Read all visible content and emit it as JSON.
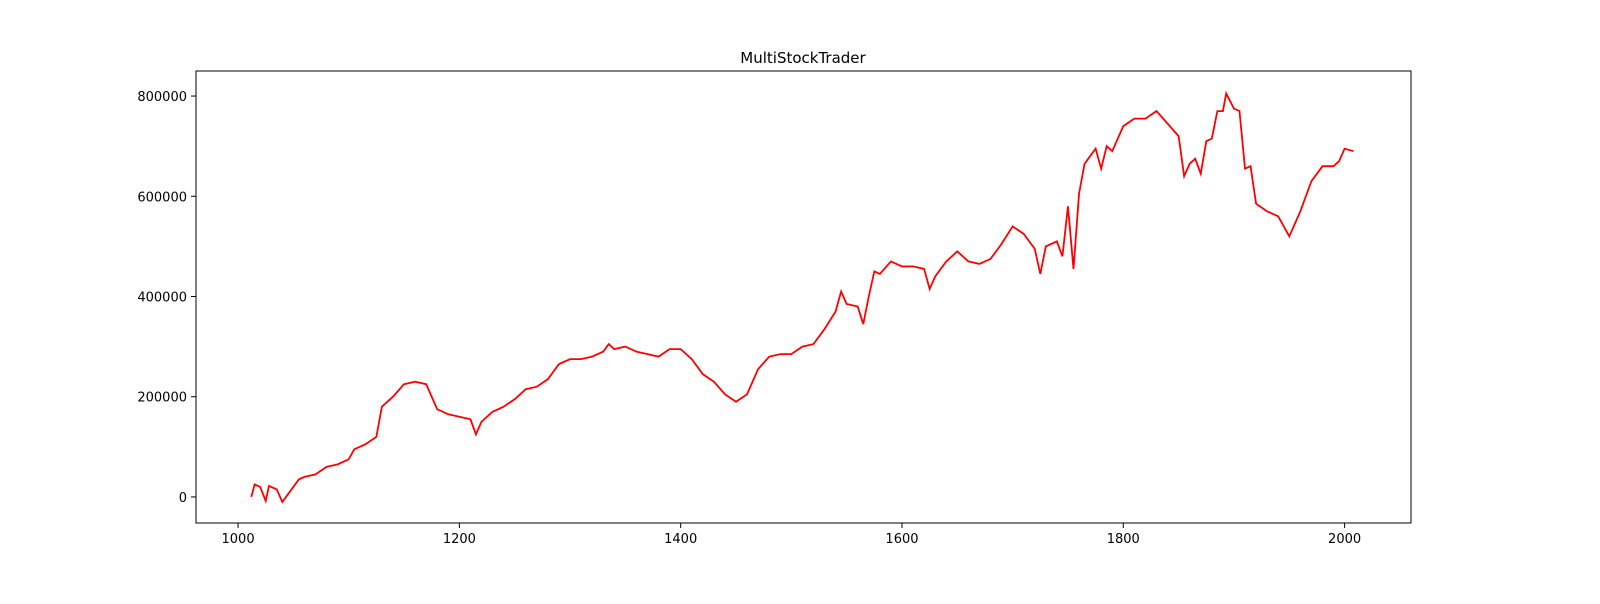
{
  "chart_data": {
    "type": "line",
    "title": "MultiStockTrader",
    "x": [
      1012,
      1015,
      1020,
      1025,
      1028,
      1035,
      1040,
      1045,
      1055,
      1060,
      1070,
      1080,
      1090,
      1100,
      1105,
      1115,
      1125,
      1130,
      1140,
      1150,
      1160,
      1170,
      1175,
      1180,
      1190,
      1200,
      1210,
      1215,
      1220,
      1230,
      1240,
      1250,
      1260,
      1270,
      1280,
      1290,
      1300,
      1310,
      1320,
      1330,
      1335,
      1340,
      1350,
      1360,
      1370,
      1380,
      1390,
      1400,
      1410,
      1420,
      1430,
      1440,
      1450,
      1460,
      1470,
      1480,
      1490,
      1500,
      1510,
      1520,
      1530,
      1540,
      1545,
      1550,
      1560,
      1565,
      1570,
      1575,
      1580,
      1590,
      1600,
      1610,
      1620,
      1625,
      1630,
      1640,
      1650,
      1660,
      1670,
      1680,
      1690,
      1700,
      1710,
      1720,
      1725,
      1730,
      1740,
      1745,
      1750,
      1755,
      1760,
      1765,
      1770,
      1775,
      1780,
      1785,
      1790,
      1800,
      1810,
      1820,
      1830,
      1840,
      1850,
      1855,
      1860,
      1865,
      1870,
      1875,
      1880,
      1885,
      1890,
      1893,
      1900,
      1905,
      1910,
      1915,
      1920,
      1930,
      1940,
      1945,
      1950,
      1955,
      1960,
      1970,
      1980,
      1990,
      1995,
      2000,
      2008
    ],
    "series": [
      {
        "color": "#ff0000",
        "values": [
          0,
          25000,
          20000,
          -8000,
          22000,
          15000,
          -10000,
          5000,
          35000,
          40000,
          45000,
          60000,
          65000,
          75000,
          95000,
          105000,
          120000,
          180000,
          200000,
          225000,
          230000,
          225000,
          200000,
          175000,
          165000,
          160000,
          155000,
          125000,
          150000,
          170000,
          180000,
          195000,
          215000,
          220000,
          235000,
          265000,
          275000,
          275000,
          280000,
          290000,
          305000,
          295000,
          300000,
          290000,
          285000,
          280000,
          295000,
          295000,
          275000,
          245000,
          230000,
          205000,
          190000,
          205000,
          255000,
          280000,
          285000,
          285000,
          300000,
          305000,
          335000,
          370000,
          410000,
          385000,
          380000,
          345000,
          400000,
          450000,
          445000,
          470000,
          460000,
          460000,
          455000,
          415000,
          440000,
          470000,
          490000,
          470000,
          465000,
          475000,
          505000,
          540000,
          525000,
          495000,
          445000,
          500000,
          510000,
          480000,
          580000,
          455000,
          605000,
          665000,
          680000,
          695000,
          655000,
          700000,
          690000,
          740000,
          755000,
          755000,
          770000,
          745000,
          720000,
          640000,
          665000,
          675000,
          645000,
          710000,
          715000,
          770000,
          770000,
          805000,
          775000,
          770000,
          655000,
          660000,
          585000,
          570000,
          560000,
          540000,
          520000,
          545000,
          570000,
          630000,
          660000,
          660000,
          670000,
          695000,
          690000
        ]
      }
    ],
    "xlim": [
      962,
      2060
    ],
    "ylim": [
      -52000,
      850000
    ],
    "xticks": [
      1000,
      1200,
      1400,
      1600,
      1800,
      2000
    ],
    "yticks": [
      0,
      200000,
      400000,
      600000,
      800000
    ]
  }
}
